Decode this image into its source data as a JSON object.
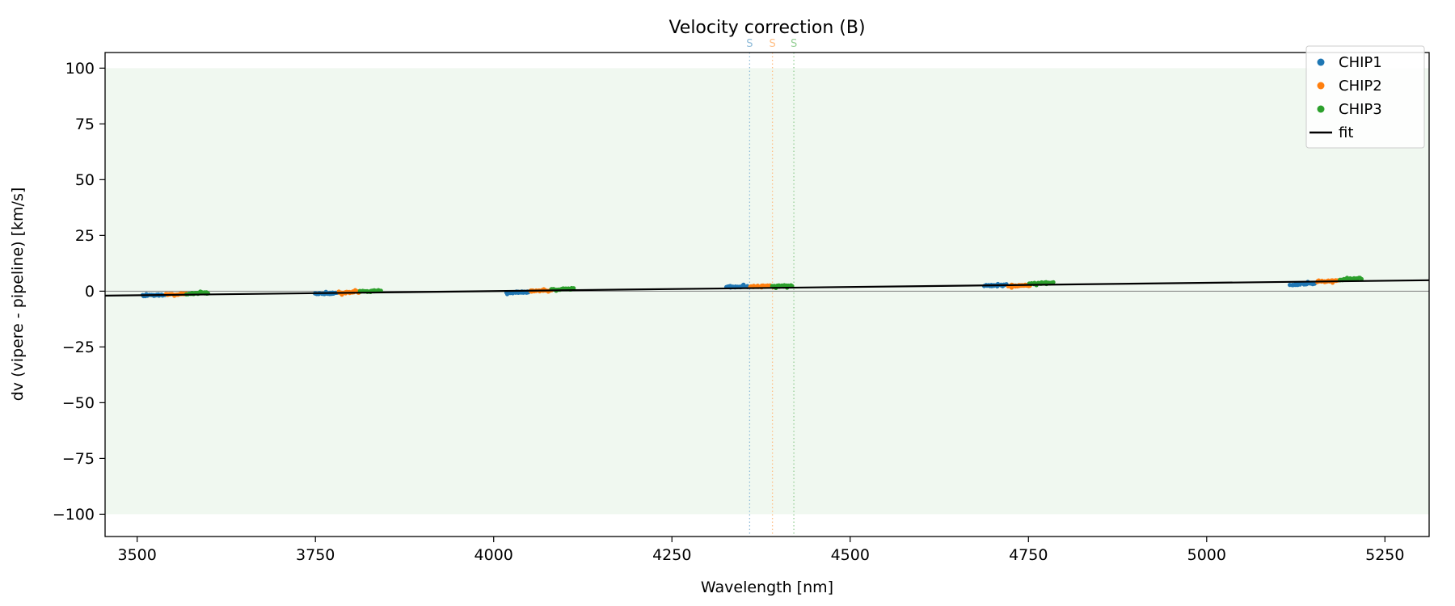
{
  "chart_data": {
    "type": "scatter",
    "title": "Velocity correction (B)",
    "xlabel": "Wavelength [nm]",
    "ylabel": "dv (vipere - pipeline) [km/s]",
    "xlim": [
      3455,
      5312
    ],
    "ylim": [
      -110,
      107
    ],
    "grid": false,
    "legend_position": "upper right",
    "xticks": {
      "values": [
        3500,
        3750,
        4000,
        4250,
        4500,
        4750,
        5000,
        5250
      ],
      "labels": [
        "3500",
        "3750",
        "4000",
        "4250",
        "4500",
        "4750",
        "5000",
        "5250"
      ]
    },
    "yticks": {
      "values": [
        -100,
        -75,
        -50,
        -25,
        0,
        25,
        50,
        75,
        100
      ],
      "labels": [
        "−100",
        "−75",
        "−50",
        "−25",
        "0",
        "25",
        "50",
        "75",
        "100"
      ]
    },
    "hspan": {
      "ymin": -100,
      "ymax": 100,
      "color": "#2ca02c",
      "opacity": 0.07
    },
    "hline": {
      "y": 0,
      "color": "#808080"
    },
    "series": [
      {
        "name": "CHIP1",
        "color": "#1f77b4",
        "clusters": [
          {
            "x0": 3508,
            "x1": 3538,
            "y0": -2.0,
            "y1": -1.7
          },
          {
            "x0": 3748,
            "x1": 3780,
            "y0": -1.2,
            "y1": -0.9
          },
          {
            "x0": 4018,
            "x1": 4050,
            "y0": -0.7,
            "y1": -0.3
          },
          {
            "x0": 4326,
            "x1": 4357,
            "y0": 1.9,
            "y1": 2.2
          },
          {
            "x0": 4688,
            "x1": 4720,
            "y0": 2.4,
            "y1": 2.8
          },
          {
            "x0": 5118,
            "x1": 5152,
            "y0": 3.0,
            "y1": 3.5
          }
        ]
      },
      {
        "name": "CHIP2",
        "color": "#ff7f0e",
        "clusters": [
          {
            "x0": 3541,
            "x1": 3570,
            "y0": -1.6,
            "y1": -1.2
          },
          {
            "x0": 3782,
            "x1": 3812,
            "y0": -0.8,
            "y1": -0.3
          },
          {
            "x0": 4052,
            "x1": 4082,
            "y0": 0.0,
            "y1": 0.4
          },
          {
            "x0": 4360,
            "x1": 4388,
            "y0": 2.1,
            "y1": 2.3
          },
          {
            "x0": 4722,
            "x1": 4752,
            "y0": 2.3,
            "y1": 2.6
          },
          {
            "x0": 5154,
            "x1": 5184,
            "y0": 4.2,
            "y1": 4.7
          }
        ]
      },
      {
        "name": "CHIP3",
        "color": "#2ca02c",
        "clusters": [
          {
            "x0": 3570,
            "x1": 3600,
            "y0": -1.1,
            "y1": -0.7
          },
          {
            "x0": 3812,
            "x1": 3842,
            "y0": -0.2,
            "y1": 0.2
          },
          {
            "x0": 4082,
            "x1": 4112,
            "y0": 0.7,
            "y1": 1.1
          },
          {
            "x0": 4390,
            "x1": 4418,
            "y0": 2.2,
            "y1": 2.5
          },
          {
            "x0": 4752,
            "x1": 4784,
            "y0": 3.4,
            "y1": 3.9
          },
          {
            "x0": 5186,
            "x1": 5216,
            "y0": 5.0,
            "y1": 5.8
          }
        ]
      }
    ],
    "fit": {
      "label": "fit",
      "color": "#000000",
      "x": [
        3455,
        5312
      ],
      "y": [
        -2.0,
        4.9
      ]
    },
    "markers": [
      {
        "x": 4359,
        "label": "S",
        "color": "#8fbbd9"
      },
      {
        "x": 4391,
        "label": "S",
        "color": "#ffbf86"
      },
      {
        "x": 4421,
        "label": "S",
        "color": "#95cf95"
      }
    ],
    "points_per_cluster": 26
  }
}
